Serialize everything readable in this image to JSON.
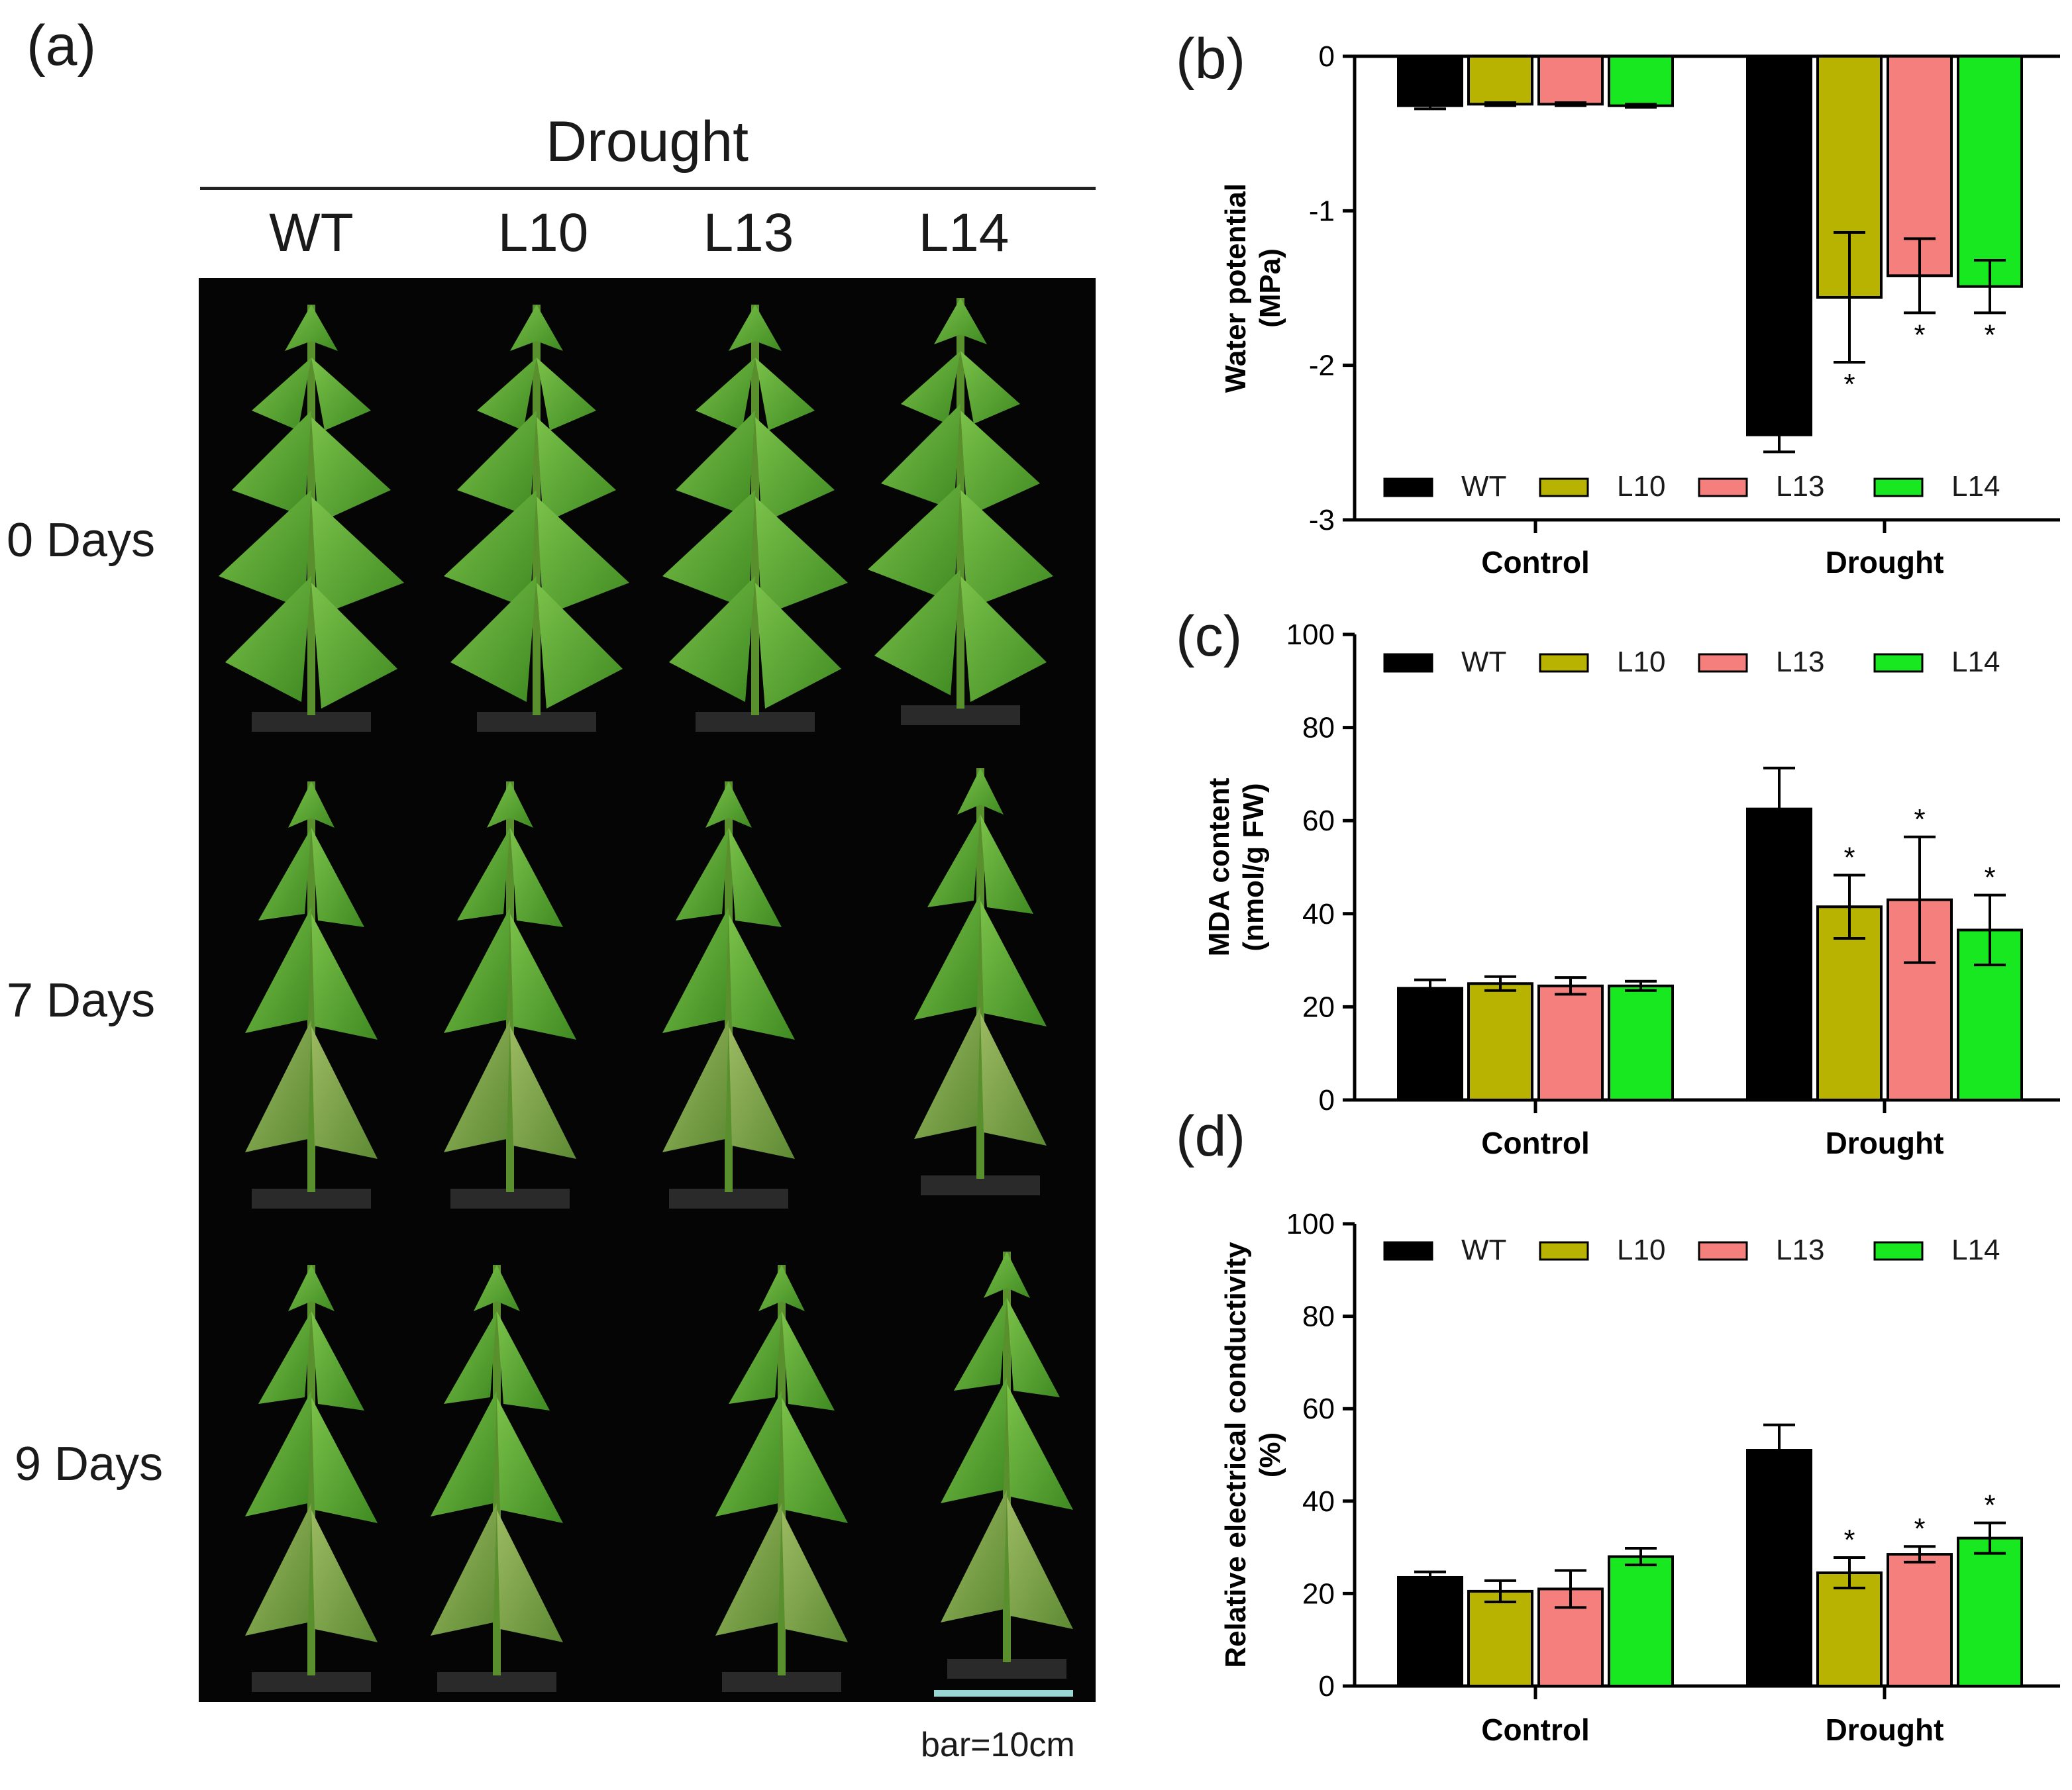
{
  "panel_a": {
    "label": "(a)",
    "group_header": "Drought",
    "columns": [
      "WT",
      "L10",
      "L13",
      "L14"
    ],
    "rows": [
      "0 Days",
      "7 Days",
      "9 Days"
    ],
    "scale_note": "bar=10cm"
  },
  "colors": {
    "WT": "#000000",
    "L10": "#b7b300",
    "L13": "#f47f7d",
    "L14": "#17e81f"
  },
  "chart_data": [
    {
      "id": "b",
      "label": "(b)",
      "type": "bar",
      "title": "",
      "ylabel": [
        "Water potential",
        "(MPa)"
      ],
      "xlabel": "",
      "ylim": [
        -3,
        0
      ],
      "yticks": [
        0,
        -1,
        -2,
        -3
      ],
      "ytick_labels": [
        "0",
        "-1",
        "-2",
        "-3"
      ],
      "categories": [
        "Control",
        "Drought"
      ],
      "legend": [
        "WT",
        "L10",
        "L13",
        "L14"
      ],
      "series": [
        {
          "name": "WT",
          "values": [
            -0.32,
            -2.45
          ],
          "errors": [
            0.02,
            0.11
          ],
          "sig": [
            "",
            ""
          ]
        },
        {
          "name": "L10",
          "values": [
            -0.31,
            -1.56
          ],
          "errors": [
            0.01,
            0.42
          ],
          "sig": [
            "",
            "*"
          ]
        },
        {
          "name": "L13",
          "values": [
            -0.31,
            -1.42
          ],
          "errors": [
            0.01,
            0.24
          ],
          "sig": [
            "",
            "*"
          ]
        },
        {
          "name": "L14",
          "values": [
            -0.32,
            -1.49
          ],
          "errors": [
            0.01,
            0.17
          ],
          "sig": [
            "",
            "*"
          ]
        }
      ]
    },
    {
      "id": "c",
      "label": "(c)",
      "type": "bar",
      "title": "",
      "ylabel": [
        "MDA content",
        "(nmol/g FW)"
      ],
      "xlabel": "",
      "ylim": [
        0,
        100
      ],
      "yticks": [
        0,
        20,
        40,
        60,
        80,
        100
      ],
      "ytick_labels": [
        "0",
        "20",
        "40",
        "60",
        "80",
        "100"
      ],
      "categories": [
        "Control",
        "Drought"
      ],
      "legend": [
        "WT",
        "L10",
        "L13",
        "L14"
      ],
      "series": [
        {
          "name": "WT",
          "values": [
            24,
            62.5
          ],
          "errors": [
            1.8,
            8.8
          ],
          "sig": [
            "",
            ""
          ]
        },
        {
          "name": "L10",
          "values": [
            25,
            41.5
          ],
          "errors": [
            1.5,
            6.8
          ],
          "sig": [
            "",
            "*"
          ]
        },
        {
          "name": "L13",
          "values": [
            24.5,
            43
          ],
          "errors": [
            1.8,
            13.5
          ],
          "sig": [
            "",
            "*"
          ]
        },
        {
          "name": "L14",
          "values": [
            24.5,
            36.5
          ],
          "errors": [
            1.0,
            7.5
          ],
          "sig": [
            "",
            "*"
          ]
        }
      ]
    },
    {
      "id": "d",
      "label": "(d)",
      "type": "bar",
      "title": "",
      "ylabel": [
        "Relative electrical conductivity",
        "(%)"
      ],
      "xlabel": "",
      "ylim": [
        0,
        100
      ],
      "yticks": [
        0,
        20,
        40,
        60,
        80,
        100
      ],
      "ytick_labels": [
        "0",
        "20",
        "40",
        "60",
        "80",
        "100"
      ],
      "categories": [
        "Control",
        "Drought"
      ],
      "legend": [
        "WT",
        "L10",
        "L13",
        "L14"
      ],
      "series": [
        {
          "name": "WT",
          "values": [
            23.5,
            51
          ],
          "errors": [
            1.2,
            5.5
          ],
          "sig": [
            "",
            ""
          ]
        },
        {
          "name": "L10",
          "values": [
            20.5,
            24.5
          ],
          "errors": [
            2.3,
            3.3
          ],
          "sig": [
            "",
            "*"
          ]
        },
        {
          "name": "L13",
          "values": [
            21,
            28.5
          ],
          "errors": [
            4.0,
            1.7
          ],
          "sig": [
            "",
            "*"
          ]
        },
        {
          "name": "L14",
          "values": [
            28,
            32
          ],
          "errors": [
            1.8,
            3.3
          ],
          "sig": [
            "",
            "*"
          ]
        }
      ]
    }
  ]
}
